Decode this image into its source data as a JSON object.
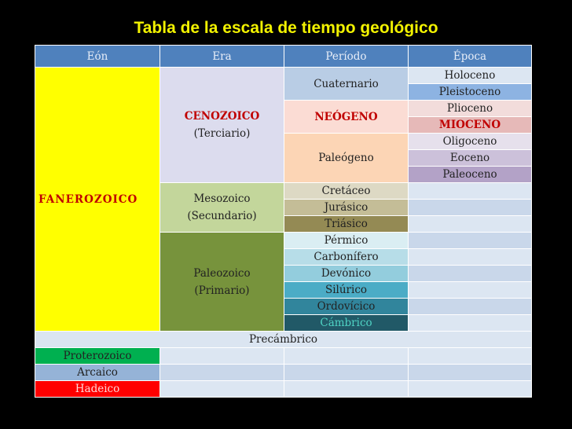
{
  "title": "Tabla de la escala de tiempo geológico",
  "header": [
    "Eón",
    "Era",
    "Período",
    "Época"
  ],
  "eon": "FANEROZOICO",
  "eras": [
    {
      "name": "CENOZOICO",
      "sub": "(Terciario)"
    },
    {
      "name": "Mesozoico",
      "sub": "(Secundario)"
    },
    {
      "name": "Paleozoico",
      "sub": "(Primario)"
    }
  ],
  "periods": [
    "Cuaternario",
    "NEÓGENO",
    "Paleógeno",
    "Cretáceo",
    "Jurásico",
    "Triásico",
    "Pérmico",
    "Carbonífero",
    "Devónico",
    "Silúrico",
    "Ordovícico",
    "Cámbrico"
  ],
  "epochs": [
    "Holoceno",
    "Pleistoceno",
    "Plioceno",
    "MIOCENO",
    "Oligoceno",
    "Eoceno",
    "Paleoceno"
  ],
  "precambrian": "Precámbrico",
  "precambrian_eons": [
    "Proterozoico",
    "Arcaico",
    "Hadeico"
  ]
}
